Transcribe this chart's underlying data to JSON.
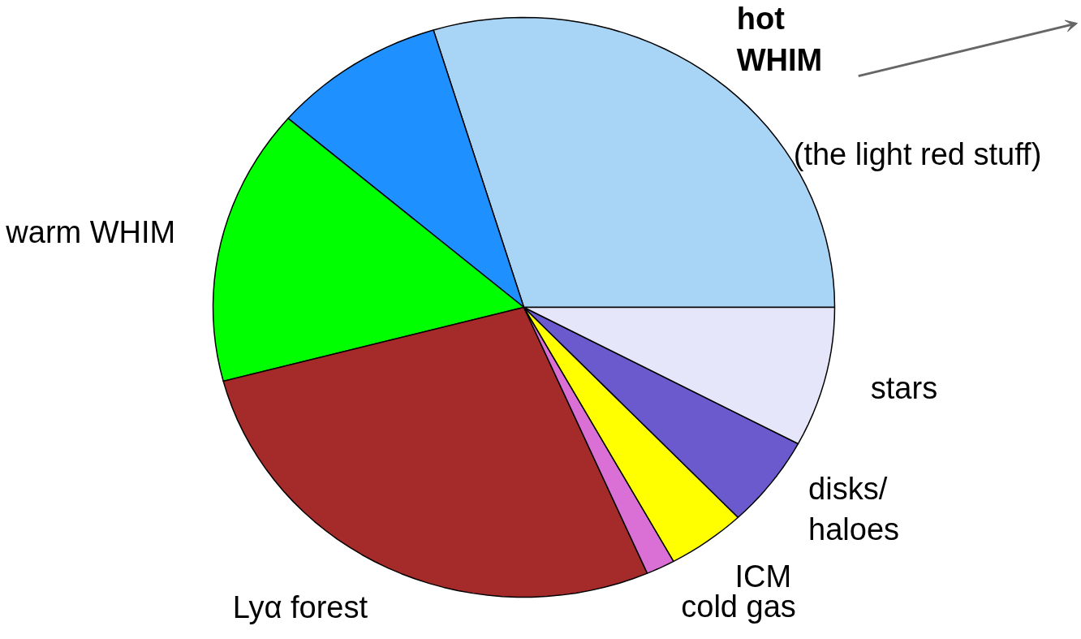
{
  "chart_data": {
    "type": "pie",
    "categories": [
      "hot\nWHIM",
      null,
      "warm WHIM",
      "Lyα forest",
      "cold gas",
      "ICM",
      "disks/\nhaloes",
      "stars"
    ],
    "values": [
      29.7,
      9.0,
      15.4,
      27.4,
      1.5,
      4.1,
      5.1,
      7.8
    ],
    "colors": [
      "#a8d4f5",
      "#1e90ff",
      "#00ff00",
      "#a52a2a",
      "#da70d6",
      "#ffff00",
      "#6a5acd",
      "#e6e6fa"
    ],
    "annotations": [
      "(the light red stuff)"
    ]
  }
}
